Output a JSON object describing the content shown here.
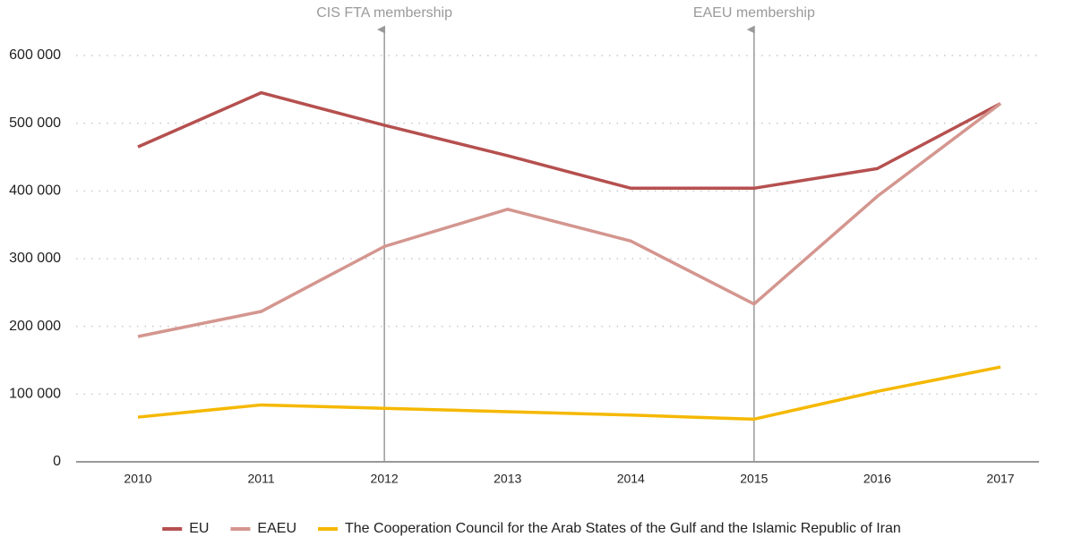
{
  "chart_data": {
    "type": "line",
    "categories": [
      "2010",
      "2011",
      "2012",
      "2013",
      "2014",
      "2015",
      "2016",
      "2017"
    ],
    "series": [
      {
        "name": "EU",
        "color": "#b5504f",
        "values": [
          465000,
          545000,
          497000,
          452000,
          404000,
          404000,
          433000,
          529000
        ]
      },
      {
        "name": "EAEU",
        "color": "#d4968f",
        "values": [
          185000,
          222000,
          318000,
          373000,
          326000,
          233000,
          392000,
          529000
        ]
      },
      {
        "name": "The Cooperation Council for the Arab States of the Gulf and the Islamic Republic of Iran",
        "color": "#f5b800",
        "values": [
          66000,
          84000,
          79000,
          74000,
          69000,
          63000,
          104000,
          140000
        ]
      }
    ],
    "ylim": [
      0,
      600000
    ],
    "yticks": [
      0,
      {
        "value": 100000,
        "label": "100 000"
      },
      {
        "value": 200000,
        "label": "200 000"
      },
      {
        "value": 300000,
        "label": "300 000"
      },
      {
        "value": 400000,
        "label": "400 000"
      },
      {
        "value": 500000,
        "label": "500 000"
      },
      {
        "value": 600000,
        "label": "600 000"
      }
    ],
    "grid": true,
    "legend": "bottom",
    "annotations": [
      {
        "x": "2012",
        "label": "CIS FTA membership"
      },
      {
        "x": "2015",
        "label": "EAEU membership"
      }
    ]
  }
}
